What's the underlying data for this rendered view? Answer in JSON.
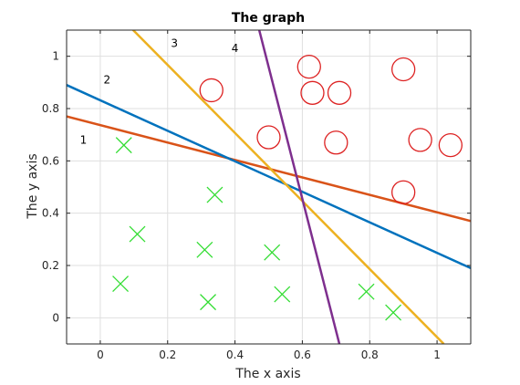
{
  "chart_data": {
    "type": "scatter",
    "title": "The graph",
    "xlabel": "The x axis",
    "ylabel": "The y axis",
    "xlim": [
      -0.1,
      1.1
    ],
    "ylim": [
      -0.1,
      1.1
    ],
    "xticks": [
      0,
      0.2,
      0.4,
      0.6,
      0.8,
      1
    ],
    "xtick_labels": [
      "0",
      "0.2",
      "0.4",
      "0.6",
      "0.8",
      "1"
    ],
    "yticks": [
      0,
      0.2,
      0.4,
      0.6,
      0.8,
      1
    ],
    "ytick_labels": [
      "0",
      "0.2",
      "0.4",
      "0.6",
      "0.8",
      "1"
    ],
    "grid": true,
    "series": [
      {
        "marker": "cross",
        "color": "#33dd33",
        "points": [
          [
            0.07,
            0.66
          ],
          [
            0.34,
            0.47
          ],
          [
            0.11,
            0.32
          ],
          [
            0.31,
            0.26
          ],
          [
            0.51,
            0.25
          ],
          [
            0.06,
            0.13
          ],
          [
            0.32,
            0.06
          ],
          [
            0.54,
            0.09
          ],
          [
            0.79,
            0.1
          ],
          [
            0.87,
            0.02
          ]
        ]
      },
      {
        "marker": "circle",
        "color": "#dd2222",
        "points": [
          [
            0.33,
            0.87
          ],
          [
            0.62,
            0.96
          ],
          [
            0.63,
            0.86
          ],
          [
            0.71,
            0.86
          ],
          [
            0.9,
            0.95
          ],
          [
            0.5,
            0.69
          ],
          [
            0.7,
            0.67
          ],
          [
            0.95,
            0.68
          ],
          [
            1.04,
            0.66
          ],
          [
            0.9,
            0.48
          ]
        ]
      }
    ],
    "lines": [
      {
        "label": "1",
        "color": "#d95319",
        "p1": [
          -0.1,
          0.77
        ],
        "p2": [
          1.1,
          0.37
        ],
        "label_pos": [
          -0.05,
          0.68
        ]
      },
      {
        "label": "2",
        "color": "#0072bd",
        "p1": [
          -0.1,
          0.89
        ],
        "p2": [
          1.1,
          0.19
        ],
        "label_pos": [
          0.02,
          0.91
        ]
      },
      {
        "label": "3",
        "color": "#edb120",
        "p1": [
          0.09,
          1.11
        ],
        "p2": [
          1.02,
          -0.1
        ],
        "label_pos": [
          0.22,
          1.05
        ]
      },
      {
        "label": "4",
        "color": "#7e2f8e",
        "p1": [
          0.47,
          1.11
        ],
        "p2": [
          0.71,
          -0.1
        ],
        "label_pos": [
          0.4,
          1.03
        ]
      }
    ]
  }
}
